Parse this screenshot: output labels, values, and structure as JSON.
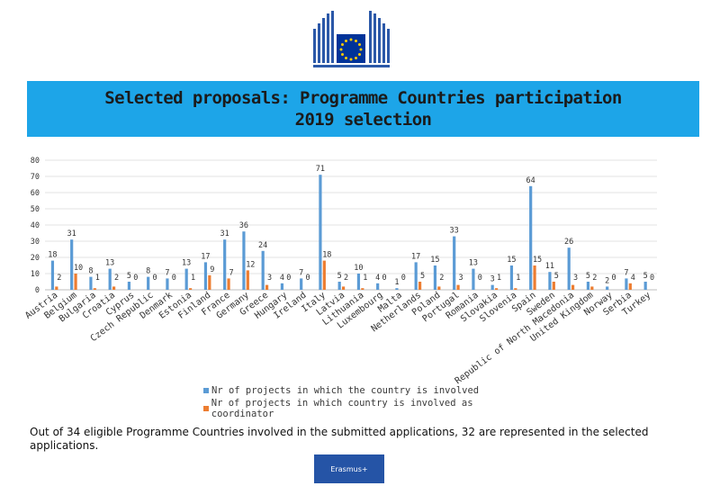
{
  "header": {
    "title_line1": "Selected proposals: Programme Countries participation",
    "title_line2": "2019 selection"
  },
  "chart_data": {
    "type": "bar",
    "categories": [
      "Austria",
      "Belgium",
      "Bulgaria",
      "Croatia",
      "Cyprus",
      "Czech Republic",
      "Denmark",
      "Estonia",
      "Finland",
      "France",
      "Germany",
      "Greece",
      "Hungary",
      "Ireland",
      "Italy",
      "Latvia",
      "Lithuania",
      "Luxembourg",
      "Malta",
      "Netherlands",
      "Poland",
      "Portugal",
      "Romania",
      "Slovakia",
      "Slovenia",
      "Spain",
      "Sweden",
      "Republic of North Macedonia",
      "United Kingdom",
      "Norway",
      "Serbia",
      "Turkey"
    ],
    "series": [
      {
        "name": "Nr of projects in which the country is involved",
        "color": "#5b9bd5",
        "values": [
          18,
          31,
          8,
          13,
          5,
          8,
          7,
          13,
          17,
          31,
          36,
          24,
          4,
          7,
          71,
          5,
          10,
          4,
          1,
          17,
          15,
          33,
          13,
          3,
          15,
          64,
          11,
          26,
          5,
          2,
          7,
          5
        ]
      },
      {
        "name": "Nr of projects in which country is involved as coordinator",
        "color": "#ed7d31",
        "values": [
          2,
          10,
          1,
          2,
          0,
          0,
          0,
          1,
          9,
          7,
          12,
          3,
          0,
          0,
          18,
          2,
          1,
          0,
          0,
          5,
          2,
          3,
          0,
          1,
          1,
          15,
          5,
          3,
          2,
          0,
          4,
          0
        ]
      }
    ],
    "ylim": [
      0,
      80
    ],
    "yticks": [
      0,
      10,
      20,
      30,
      40,
      50,
      60,
      70,
      80
    ],
    "grid": true,
    "legend": "bottom"
  },
  "footnote": "Out of 34 eligible Programme Countries involved in the submitted applications, 32 are represented in the selected applications.",
  "badge": {
    "label": "Erasmus+"
  },
  "colors": {
    "banner": "#1da5e8",
    "primary_series": "#5b9bd5",
    "coordinator_series": "#ed7d31",
    "eu_blue": "#003399",
    "eu_star": "#ffcc00"
  }
}
